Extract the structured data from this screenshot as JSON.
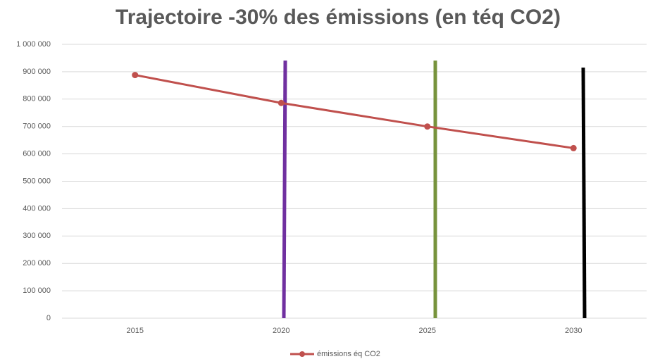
{
  "chart_data": {
    "type": "line",
    "title": "Trajectoire -30% des émissions (en téq CO2)",
    "categories": [
      "2015",
      "2020",
      "2025",
      "2030"
    ],
    "series": [
      {
        "name": "émissions éq CO2",
        "color": "#c0504d",
        "values": [
          888000,
          786000,
          700000,
          621000
        ]
      }
    ],
    "ylim": [
      0,
      1000000
    ],
    "yticks": [
      0,
      {
        "value": 100000,
        "label": "100 000"
      },
      {
        "value": 200000,
        "label": "200 000"
      },
      {
        "value": 300000,
        "label": "300 000"
      },
      {
        "value": 400000,
        "label": "400 000"
      },
      {
        "value": 500000,
        "label": "500 000"
      },
      {
        "value": 600000,
        "label": "600 000"
      },
      {
        "value": 700000,
        "label": "700 000"
      },
      {
        "value": 800000,
        "label": "800 000"
      },
      {
        "value": 900000,
        "label": "900 000"
      },
      {
        "value": 1000000,
        "label": "1 000 000"
      }
    ],
    "grid": true,
    "legend": "bottom"
  }
}
